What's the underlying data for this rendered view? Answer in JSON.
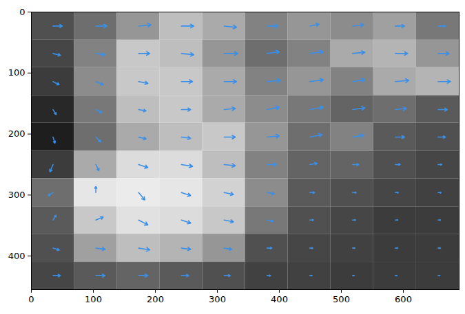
{
  "chart_data": {
    "type": "quiver",
    "xlim": [
      0,
      690
    ],
    "ylim": [
      455,
      0
    ],
    "xticks": [
      0,
      100,
      200,
      300,
      400,
      500,
      600
    ],
    "yticks": [
      0,
      100,
      200,
      300,
      400
    ],
    "color": "#3a8fe8",
    "cell_x_edges": [
      0,
      69,
      138,
      207,
      276,
      345,
      414,
      483,
      552,
      621,
      690
    ],
    "cell_y_edges": [
      0,
      46,
      91,
      137,
      182,
      228,
      273,
      319,
      364,
      410,
      455
    ],
    "clim": [
      0,
      255
    ],
    "brightness": [
      [
        80,
        110,
        150,
        190,
        170,
        130,
        150,
        140,
        160,
        120
      ],
      [
        70,
        130,
        200,
        190,
        150,
        110,
        130,
        170,
        180,
        150
      ],
      [
        60,
        140,
        200,
        200,
        170,
        130,
        150,
        130,
        170,
        180
      ],
      [
        40,
        120,
        190,
        200,
        170,
        140,
        120,
        100,
        110,
        90
      ],
      [
        30,
        110,
        170,
        190,
        200,
        150,
        110,
        130,
        90,
        80
      ],
      [
        60,
        170,
        220,
        220,
        190,
        130,
        100,
        100,
        80,
        70
      ],
      [
        110,
        230,
        235,
        230,
        210,
        140,
        90,
        80,
        70,
        65
      ],
      [
        90,
        200,
        225,
        220,
        200,
        120,
        80,
        70,
        60,
        60
      ],
      [
        80,
        160,
        190,
        180,
        150,
        80,
        70,
        65,
        60,
        60
      ],
      [
        70,
        90,
        100,
        90,
        80,
        65,
        65,
        60,
        60,
        60
      ]
    ],
    "vector_x": [
      35,
      104,
      173,
      242,
      311,
      380,
      449,
      518,
      587,
      656
    ],
    "vector_y": [
      23,
      68,
      114,
      160,
      205,
      250,
      296,
      341,
      387,
      432
    ],
    "u": [
      [
        15,
        18,
        20,
        20,
        20,
        18,
        15,
        18,
        15,
        12
      ],
      [
        12,
        15,
        18,
        20,
        22,
        20,
        22,
        20,
        20,
        18
      ],
      [
        10,
        12,
        15,
        18,
        20,
        22,
        22,
        20,
        22,
        20
      ],
      [
        5,
        10,
        12,
        15,
        18,
        20,
        22,
        20,
        18,
        15
      ],
      [
        3,
        8,
        12,
        15,
        18,
        20,
        20,
        18,
        15,
        12
      ],
      [
        -5,
        5,
        15,
        18,
        18,
        15,
        12,
        10,
        8,
        6
      ],
      [
        -8,
        0,
        10,
        15,
        15,
        12,
        8,
        6,
        5,
        5
      ],
      [
        5,
        12,
        15,
        15,
        15,
        10,
        6,
        5,
        4,
        4
      ],
      [
        10,
        15,
        18,
        15,
        12,
        8,
        5,
        4,
        4,
        4
      ],
      [
        12,
        15,
        15,
        12,
        10,
        6,
        4,
        3,
        3,
        3
      ]
    ],
    "v": [
      [
        0,
        0,
        -2,
        0,
        2,
        0,
        -3,
        -2,
        0,
        0
      ],
      [
        3,
        2,
        0,
        2,
        0,
        -3,
        -3,
        -2,
        0,
        0
      ],
      [
        5,
        5,
        3,
        0,
        0,
        -2,
        -3,
        -3,
        -2,
        0
      ],
      [
        8,
        5,
        2,
        0,
        -2,
        -4,
        -4,
        -3,
        -2,
        0
      ],
      [
        10,
        8,
        3,
        2,
        0,
        -2,
        -4,
        -3,
        0,
        0
      ],
      [
        12,
        10,
        5,
        3,
        2,
        0,
        -2,
        0,
        0,
        0
      ],
      [
        5,
        -10,
        12,
        5,
        3,
        2,
        0,
        0,
        0,
        0
      ],
      [
        -8,
        -5,
        8,
        5,
        3,
        2,
        0,
        0,
        0,
        0
      ],
      [
        3,
        2,
        3,
        2,
        2,
        0,
        0,
        0,
        0,
        0
      ],
      [
        0,
        0,
        0,
        0,
        0,
        0,
        0,
        0,
        0,
        0
      ]
    ]
  }
}
